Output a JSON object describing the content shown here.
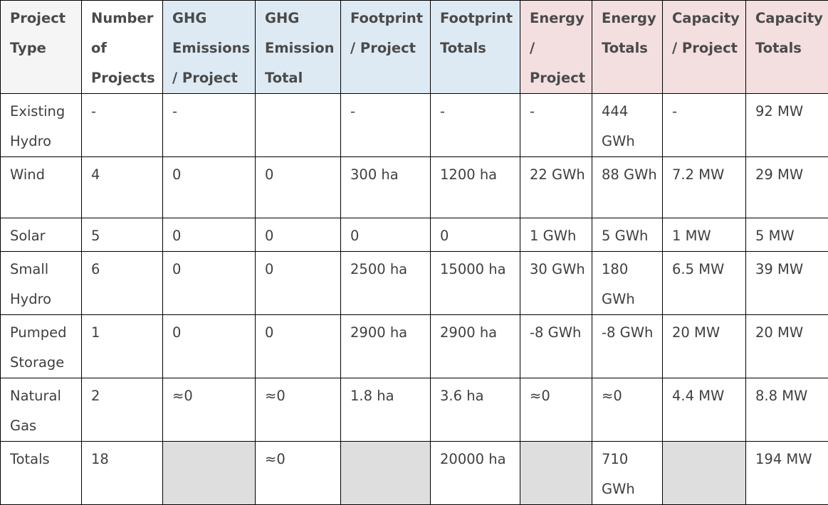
{
  "columns": [
    {
      "label": "Project Type",
      "group": "neutral"
    },
    {
      "label": "Number of Projects",
      "group": "neutral"
    },
    {
      "label": "GHG Emissions / Project",
      "group": "ghg"
    },
    {
      "label": "GHG Emission Total",
      "group": "ghg"
    },
    {
      "label": "Footprint / Project",
      "group": "footprint"
    },
    {
      "label": "Footprint Totals",
      "group": "footprint"
    },
    {
      "label": "Energy / Project",
      "group": "energy"
    },
    {
      "label": "Energy Totals",
      "group": "energy"
    },
    {
      "label": "Capacity / Project",
      "group": "capacity"
    },
    {
      "label": "Capacity Totals",
      "group": "capacity"
    }
  ],
  "rows": [
    [
      "Existing Hydro",
      "-",
      "-",
      "",
      "-",
      "-",
      "-",
      "444 GWh",
      "-",
      "92 MW"
    ],
    [
      "Wind",
      "4",
      "0",
      "0",
      "300 ha",
      "1200 ha",
      "22 GWh",
      "88 GWh",
      "7.2 MW",
      "29 MW"
    ],
    [
      "Solar",
      "5",
      "0",
      "0",
      "0",
      "0",
      "1 GWh",
      "5 GWh",
      "1 MW",
      "5 MW"
    ],
    [
      "Small Hydro",
      "6",
      "0",
      "0",
      "2500 ha",
      "15000 ha",
      "30 GWh",
      "180 GWh",
      "6.5 MW",
      "39 MW"
    ],
    [
      "Pumped Storage",
      "1",
      "0",
      "0",
      "2900 ha",
      "2900 ha",
      "-8 GWh",
      "-8 GWh",
      "20 MW",
      "20 MW"
    ],
    [
      "Natural Gas",
      "2",
      "≈0",
      "≈0",
      "1.8 ha",
      "3.6 ha",
      "≈0",
      "≈0",
      "4.4 MW",
      "8.8 MW"
    ],
    [
      "Totals",
      "18",
      "",
      "≈0",
      "",
      "20000 ha",
      "",
      "710 GWh",
      "",
      "194 MW"
    ]
  ],
  "colors": {
    "ghg_footprint_header": "#deeaf3",
    "energy_capacity_header": "#f3dee0",
    "project_type_header": "#f5f5f5",
    "totals_blank_cell": "#dedede",
    "text": "#3f3f3f"
  }
}
